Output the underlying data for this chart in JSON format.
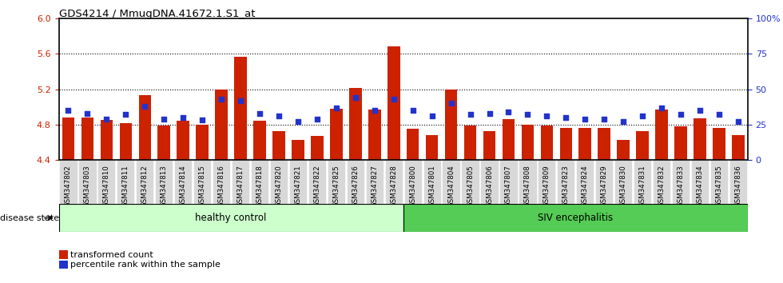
{
  "title": "GDS4214 / MmugDNA.41672.1.S1_at",
  "categories": [
    "GSM347802",
    "GSM347803",
    "GSM347810",
    "GSM347811",
    "GSM347812",
    "GSM347813",
    "GSM347814",
    "GSM347815",
    "GSM347816",
    "GSM347817",
    "GSM347818",
    "GSM347820",
    "GSM347821",
    "GSM347822",
    "GSM347825",
    "GSM347826",
    "GSM347827",
    "GSM347828",
    "GSM347800",
    "GSM347801",
    "GSM347804",
    "GSM347805",
    "GSM347806",
    "GSM347807",
    "GSM347808",
    "GSM347809",
    "GSM347823",
    "GSM347824",
    "GSM347829",
    "GSM347830",
    "GSM347831",
    "GSM347832",
    "GSM347833",
    "GSM347834",
    "GSM347835",
    "GSM347836"
  ],
  "bar_values": [
    4.88,
    4.88,
    4.85,
    4.82,
    5.13,
    4.79,
    4.84,
    4.8,
    5.2,
    5.57,
    4.84,
    4.73,
    4.63,
    4.67,
    4.98,
    5.21,
    4.97,
    5.68,
    4.75,
    4.68,
    5.2,
    4.79,
    4.73,
    4.86,
    4.8,
    4.79,
    4.76,
    4.76,
    4.76,
    4.63,
    4.73,
    4.97,
    4.78,
    4.87,
    4.76,
    4.68
  ],
  "dot_values": [
    35,
    33,
    29,
    32,
    38,
    29,
    30,
    28,
    43,
    42,
    33,
    31,
    27,
    29,
    37,
    44,
    35,
    43,
    35,
    31,
    40,
    32,
    33,
    34,
    32,
    31,
    30,
    29,
    29,
    27,
    31,
    37,
    32,
    35,
    32,
    27
  ],
  "healthy_count": 18,
  "bar_color": "#cc2200",
  "dot_color": "#2233cc",
  "y_min": 4.4,
  "y_max": 6.0,
  "yticks_left": [
    4.4,
    4.8,
    5.2,
    5.6,
    6.0
  ],
  "yticks_right": [
    0,
    25,
    50,
    75,
    100
  ],
  "hlines": [
    4.8,
    5.2,
    5.6
  ],
  "legend_items": [
    "transformed count",
    "percentile rank within the sample"
  ],
  "disease_state_label": "disease state",
  "group_labels": [
    "healthy control",
    "SIV encephalitis"
  ],
  "healthy_color": "#ccffcc",
  "siv_color": "#55cc55",
  "xticklabel_bg": "#d8d8d8"
}
